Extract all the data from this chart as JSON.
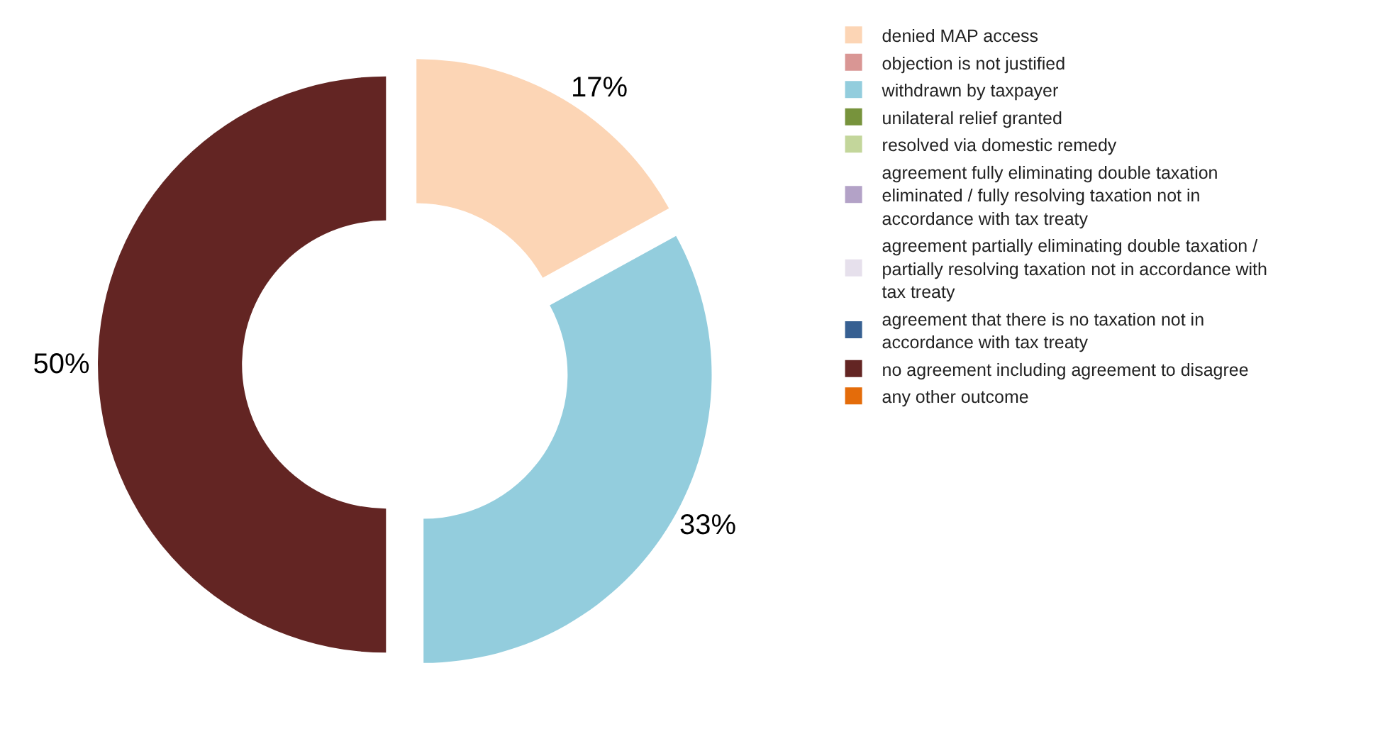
{
  "chart_data": {
    "type": "donut",
    "categories": [
      "denied MAP access",
      "objection is not justified",
      "withdrawn by taxpayer",
      "unilateral relief granted",
      "resolved via domestic remedy",
      "agreement fully eliminating double taxation eliminated / fully resolving taxation not in accordance with tax treaty",
      "agreement partially eliminating double taxation / partially resolving taxation not in accordance with tax treaty",
      "agreement that there is no taxation not in accordance with tax treaty",
      "no agreement including agreement to disagree",
      "any other outcome"
    ],
    "values": [
      17,
      0,
      33,
      0,
      0,
      0,
      0,
      0,
      50,
      0
    ],
    "colors": [
      "#fcd5b5",
      "#d99694",
      "#93cddd",
      "#77933c",
      "#c3d69b",
      "#b3a2c7",
      "#e6e0ec",
      "#376092",
      "#632523",
      "#e46c0a"
    ],
    "value_labels": [
      "17%",
      null,
      "33%",
      null,
      null,
      null,
      null,
      null,
      "50%",
      null
    ],
    "legend": "right"
  }
}
